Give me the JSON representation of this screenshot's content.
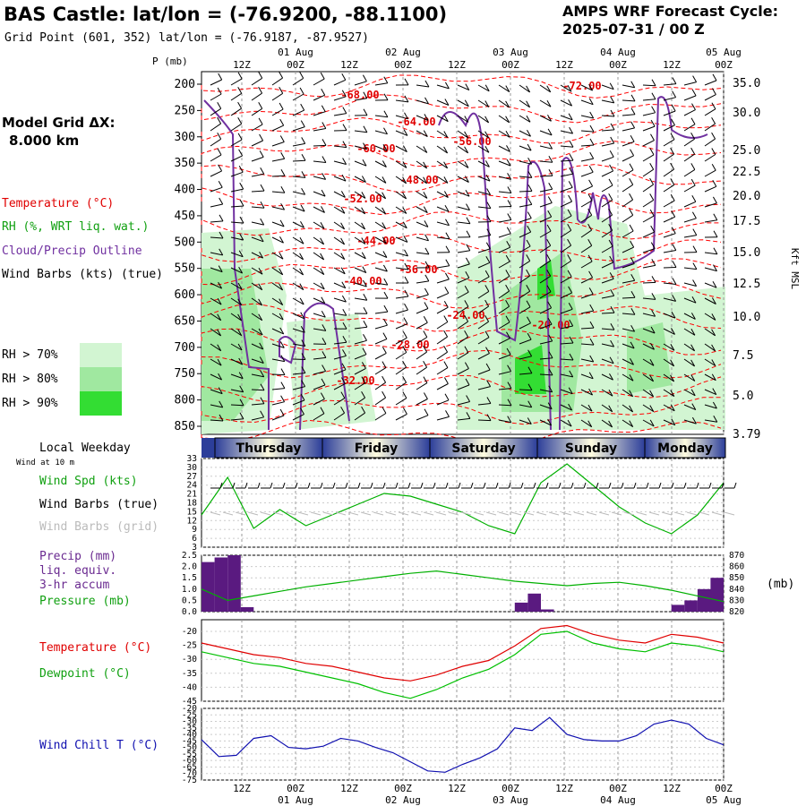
{
  "header": {
    "station_title": "BAS Castle:  lat/lon = (-76.9200, -88.1100)",
    "grid_point": "Grid Point (601, 352) lat/lon = (-76.9187, -87.9527)",
    "forecast_label": "AMPS WRF Forecast Cycle:",
    "forecast_cycle": "2025-07-31 / 00  Z"
  },
  "left_legend": {
    "model_grid_label": "Model Grid ΔX:",
    "model_grid_value": "8.000 km",
    "temperature": "Temperature (°C)",
    "rh": "RH (%, WRT liq. wat.)",
    "cloud": "Cloud/Precip Outline",
    "wind_barbs": "Wind Barbs (kts) (true)",
    "rh70": "RH > 70%",
    "rh80": "RH > 80%",
    "rh90": "RH > 90%",
    "local_weekday": "Local Weekday",
    "wind_at": "Wind at 10 m",
    "wind_spd": "Wind Spd (kts)",
    "wind_barbs_true": "Wind Barbs (true)",
    "wind_barbs_grid": "Wind Barbs (grid)",
    "precip": "Precip (mm)",
    "liq_equiv": "liq. equiv.",
    "accum": "3-hr accum",
    "pressure": "Pressure (mb)",
    "temp2": "Temperature (°C)",
    "dewpoint": "Dewpoint (°C)",
    "windchill": "Wind Chill T (°C)",
    "pressure_unit": "(mb)"
  },
  "colors": {
    "temperature": "#ff0000",
    "rh": "#00b000",
    "cloud": "#7030a0",
    "windchill": "#1010b0",
    "rh70": "#d2f5d2",
    "rh80": "#a0e8a0",
    "rh90": "#33dd33",
    "precip_bar": "#5a1a80"
  },
  "time_axis": {
    "top_dates": [
      "01 Aug",
      "02 Aug",
      "03 Aug",
      "04 Aug",
      "05 Aug"
    ],
    "top_hours": [
      "12Z",
      "00Z",
      "12Z",
      "00Z",
      "12Z",
      "00Z",
      "12Z",
      "00Z",
      "12Z",
      "00Z"
    ],
    "bottom_hours": [
      "12Z",
      "00Z",
      "12Z",
      "00Z",
      "12Z",
      "00Z",
      "12Z",
      "00Z",
      "12Z",
      "00Z"
    ],
    "bottom_dates": [
      "01 Aug",
      "02 Aug",
      "03 Aug",
      "04 Aug",
      "05 Aug"
    ],
    "weekdays": [
      "Thursday",
      "Friday",
      "Saturday",
      "Sunday",
      "Monday"
    ]
  },
  "chart_data": [
    {
      "type": "heatmap",
      "name": "cross-section",
      "ylabel": "P (mb)",
      "y2label": "Kft MSL",
      "pressure_ticks": [
        "200",
        "250",
        "300",
        "350",
        "400",
        "450",
        "500",
        "550",
        "600",
        "650",
        "700",
        "750",
        "800",
        "850"
      ],
      "height_ticks": [
        "35.0",
        "30.0",
        "25.0",
        "22.5",
        "20.0",
        "17.5",
        "15.0",
        "12.5",
        "10.0",
        "7.5",
        "5.0",
        "3.79"
      ],
      "temperature_labels": [
        "-68.00",
        "-72.00",
        "-64.00",
        "-56.00",
        "-60.00",
        "-48.00",
        "-52.00",
        "-44.00",
        "-36.00",
        "-40.00",
        "-24.00",
        "-20.00",
        "-28.00",
        "-32.00"
      ]
    },
    {
      "type": "line",
      "name": "wind-speed",
      "yticks": [
        "33",
        "30",
        "27",
        "24",
        "21",
        "18",
        "15",
        "12",
        "9",
        "6",
        "3"
      ],
      "ylim": [
        0,
        33
      ],
      "x_hours": [
        0,
        6,
        12,
        18,
        24,
        30,
        36,
        42,
        48,
        54,
        60,
        66,
        72,
        78,
        84,
        90,
        96,
        102,
        108,
        114,
        120
      ],
      "values": [
        12,
        26,
        7,
        14,
        8,
        12,
        16,
        20,
        19,
        16,
        13,
        8,
        5,
        24,
        31,
        23,
        15,
        9,
        5,
        12,
        24
      ]
    },
    {
      "type": "bar",
      "name": "precip-pressure",
      "yticks": [
        "2.5",
        "2.0",
        "1.5",
        "1.0",
        "0.5",
        "0.0"
      ],
      "y2ticks": [
        "870",
        "860",
        "850",
        "840",
        "830",
        "820"
      ],
      "ylim": [
        0,
        2.5
      ],
      "y2lim": [
        820,
        870
      ],
      "precip": [
        {
          "x": 0,
          "v": 2.2
        },
        {
          "x": 3,
          "v": 2.4
        },
        {
          "x": 6,
          "v": 2.5
        },
        {
          "x": 9,
          "v": 0.2
        },
        {
          "x": 72,
          "v": 0.4
        },
        {
          "x": 75,
          "v": 0.8
        },
        {
          "x": 78,
          "v": 0.1
        },
        {
          "x": 108,
          "v": 0.3
        },
        {
          "x": 111,
          "v": 0.5
        },
        {
          "x": 114,
          "v": 1.0
        },
        {
          "x": 117,
          "v": 1.5
        }
      ],
      "pressure_hours": [
        0,
        6,
        12,
        18,
        24,
        30,
        36,
        42,
        48,
        54,
        60,
        66,
        72,
        78,
        84,
        90,
        96,
        102,
        108,
        114,
        120
      ],
      "pressure_values": [
        840,
        830,
        834,
        838,
        842,
        845,
        848,
        851,
        854,
        856,
        853,
        850,
        847,
        845,
        843,
        845,
        846,
        843,
        839,
        834,
        829
      ]
    },
    {
      "type": "line",
      "name": "temperature-dewpoint",
      "yticks": [
        "-20",
        "-25",
        "-30",
        "-35",
        "-40",
        "-45"
      ],
      "ylim": [
        -45,
        -17
      ],
      "x_hours": [
        0,
        6,
        12,
        18,
        24,
        30,
        36,
        42,
        48,
        54,
        60,
        66,
        72,
        78,
        84,
        90,
        96,
        102,
        108,
        114,
        120
      ],
      "series": [
        {
          "name": "Temperature",
          "values": [
            -25,
            -27,
            -29,
            -30,
            -32,
            -33,
            -35,
            -37,
            -38,
            -36,
            -33,
            -31,
            -26,
            -20,
            -19,
            -22,
            -24,
            -25,
            -22,
            -23,
            -25
          ]
        },
        {
          "name": "Dewpoint",
          "values": [
            -28,
            -30,
            -32,
            -33,
            -35,
            -37,
            -39,
            -42,
            -44,
            -41,
            -37,
            -34,
            -29,
            -22,
            -21,
            -25,
            -27,
            -28,
            -25,
            -26,
            -28
          ]
        }
      ]
    },
    {
      "type": "line",
      "name": "wind-chill",
      "yticks": [
        "-20",
        "-25",
        "-30",
        "-35",
        "-40",
        "-45",
        "-50",
        "-55",
        "-60",
        "-65",
        "-70",
        "-75"
      ],
      "ylim": [
        -75,
        -20
      ],
      "x_hours": [
        0,
        4,
        8,
        12,
        16,
        20,
        24,
        28,
        32,
        36,
        40,
        44,
        48,
        52,
        56,
        60,
        64,
        68,
        72,
        76,
        80,
        84,
        88,
        92,
        96,
        100,
        104,
        108,
        112,
        116,
        120
      ],
      "values": [
        -44,
        -57,
        -56,
        -43,
        -41,
        -50,
        -51,
        -49,
        -43,
        -45,
        -50,
        -54,
        -61,
        -68,
        -69,
        -63,
        -58,
        -51,
        -35,
        -37,
        -27,
        -40,
        -44,
        -45,
        -45,
        -41,
        -32,
        -29,
        -32,
        -43,
        -48
      ]
    }
  ]
}
